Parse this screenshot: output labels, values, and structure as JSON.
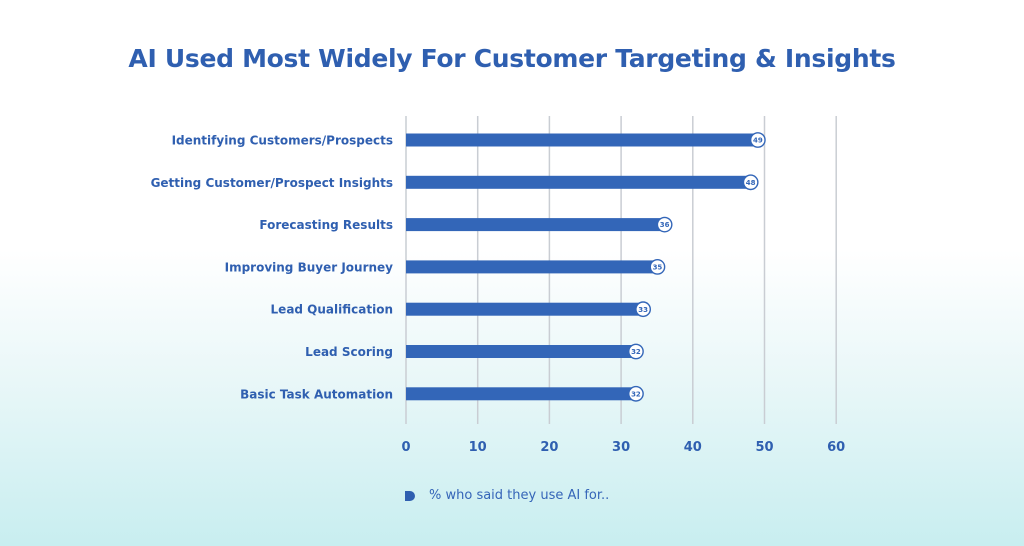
{
  "chart_data": {
    "type": "bar",
    "orientation": "horizontal",
    "title": "AI Used Most Widely For Customer Targeting & Insights",
    "categories": [
      "Identifying Customers/Prospects",
      "Getting Customer/Prospect Insights",
      "Forecasting Results",
      "Improving Buyer Journey",
      "Lead Qualification",
      "Lead Scoring",
      "Basic Task Automation"
    ],
    "series": [
      {
        "name": "% who said they use AI for..",
        "values": [
          49,
          48,
          36,
          35,
          33,
          32,
          32
        ]
      }
    ],
    "xlim": [
      0,
      60
    ],
    "xticks": [
      0,
      10,
      20,
      30,
      40,
      50,
      60
    ],
    "grid": true,
    "legend_position": "bottom-left",
    "colors": {
      "bar": "#3366b8",
      "text": "#2f5fb0",
      "grid": "#c9cdd3",
      "label_bg": "#ffffff"
    }
  }
}
